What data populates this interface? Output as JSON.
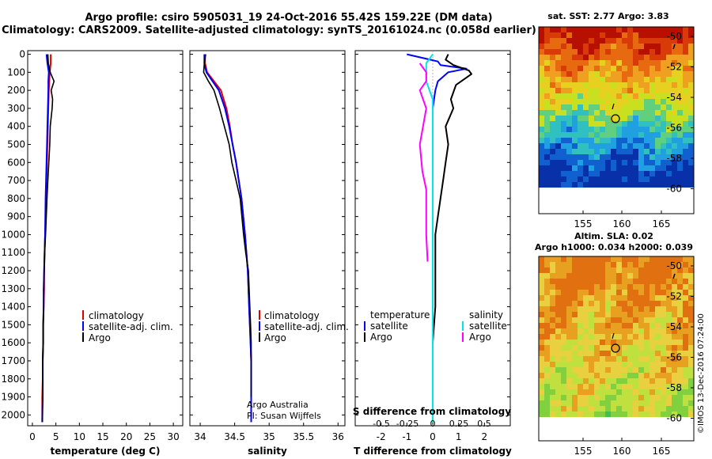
{
  "header": {
    "line1": "Argo profile: csiro 5905031_19 24-Oct-2016 55.42S 159.22E (DM data)",
    "line2": "Climatology: CARS2009. Satellite-adjusted climatology: synTS_20161024.nc (0.058d earlier)"
  },
  "colors": {
    "climatology": "#e00000",
    "satellite": "#0000ff",
    "argo": "#000000",
    "sal_satellite": "#00e5e5",
    "sal_argo": "#ff00ff"
  },
  "depth_ticks": [
    "0",
    "100",
    "200",
    "300",
    "400",
    "500",
    "600",
    "700",
    "800",
    "900",
    "1000",
    "1100",
    "1200",
    "1300",
    "1400",
    "1500",
    "1600",
    "1700",
    "1800",
    "1900",
    "2000"
  ],
  "panels": {
    "temperature": {
      "xlabel": "temperature (deg C)",
      "xticks": [
        "0",
        "5",
        "10",
        "15",
        "20",
        "25",
        "30"
      ],
      "legend": [
        "climatology",
        "satellite-adj. clim.",
        "Argo"
      ]
    },
    "salinity": {
      "xlabel": "salinity",
      "xticks": [
        "34",
        "34.5",
        "35",
        "35.5",
        "36"
      ],
      "legend": [
        "climatology",
        "satellite-adj. clim.",
        "Argo"
      ],
      "credit1": "Argo Australia",
      "credit2": "PI: Susan Wijffels"
    },
    "difference": {
      "xlabel": "T difference from climatology",
      "xticks": [
        "-2",
        "-1",
        "0",
        "1",
        "2"
      ],
      "s_label": "S difference from climatology",
      "s_ticks": [
        "-0.5",
        "-0.25",
        "0",
        "0.25",
        "0.5"
      ],
      "legend_t_title": "temperature",
      "legend_s_title": "salinity",
      "legend_t": [
        "satellite",
        "Argo"
      ],
      "legend_s": [
        "satellite",
        "Argo"
      ]
    }
  },
  "maps": {
    "sst": {
      "title": "sat. SST: 2.77 Argo: 3.83",
      "yticks": [
        "-50",
        "-52",
        "-54",
        "-56",
        "-58",
        "-60"
      ],
      "xticks": [
        "155",
        "160",
        "165"
      ]
    },
    "sla": {
      "title1": "Altim. SLA: 0.02",
      "title2": "Argo h1000: 0.034 h2000: 0.039",
      "yticks": [
        "-50",
        "-52",
        "-54",
        "-56",
        "-58",
        "-60"
      ],
      "xticks": [
        "155",
        "160",
        "165"
      ]
    },
    "float_position": {
      "lon": 159.22,
      "lat": -55.42
    }
  },
  "stamp": "©IMOS 13-Dec-2016 07:24:00",
  "chart_data": [
    {
      "type": "line",
      "title": "",
      "xlabel": "temperature (deg C)",
      "ylabel": "",
      "xlim": [
        -1,
        32
      ],
      "ylim": [
        2060,
        -20
      ],
      "series": [
        {
          "name": "climatology",
          "x": [
            3.9,
            3.9,
            3.7,
            3.6,
            3.5,
            3.4,
            3.3,
            3.2,
            3.1,
            3.0,
            2.9,
            2.7,
            2.6,
            2.5,
            2.5,
            2.4,
            2.3,
            2.3,
            2.2,
            2.2,
            2.1,
            2.1
          ],
          "y": [
            0,
            50,
            100,
            150,
            200,
            300,
            400,
            500,
            600,
            700,
            800,
            1000,
            1100,
            1200,
            1300,
            1400,
            1500,
            1600,
            1700,
            1800,
            1900,
            2040
          ]
        },
        {
          "name": "satellite-adj. clim.",
          "x": [
            3.0,
            3.2,
            3.5,
            3.4,
            3.4,
            3.3,
            3.2,
            3.1,
            3.0,
            2.9,
            2.8,
            2.7,
            2.6,
            2.5,
            2.4,
            2.4,
            2.3,
            2.3,
            2.2,
            2.2,
            2.2,
            2.1
          ],
          "y": [
            0,
            50,
            100,
            150,
            200,
            300,
            400,
            500,
            600,
            700,
            800,
            1000,
            1100,
            1200,
            1300,
            1400,
            1500,
            1600,
            1700,
            1800,
            1900,
            2040
          ]
        },
        {
          "name": "Argo",
          "x": [
            3.3,
            3.4,
            3.8,
            4.6,
            4.0,
            4.3,
            4.2,
            3.8,
            3.7,
            3.5,
            3.3,
            3.1,
            2.8,
            2.6,
            2.5,
            2.4,
            2.4,
            2.3,
            2.3,
            2.2,
            2.2,
            2.2,
            2.1
          ],
          "y": [
            0,
            50,
            100,
            150,
            200,
            250,
            300,
            400,
            500,
            600,
            700,
            800,
            1000,
            1100,
            1200,
            1300,
            1400,
            1500,
            1600,
            1700,
            1800,
            1900,
            2040
          ]
        }
      ]
    },
    {
      "type": "line",
      "title": "",
      "xlabel": "salinity",
      "ylabel": "",
      "xlim": [
        33.85,
        36.1
      ],
      "ylim": [
        2060,
        -20
      ],
      "series": [
        {
          "name": "climatology",
          "x": [
            34.07,
            34.07,
            34.1,
            34.2,
            34.3,
            34.38,
            34.43,
            34.47,
            34.52,
            34.56,
            34.6,
            34.65,
            34.69,
            34.71,
            34.72,
            34.73,
            34.74,
            34.74,
            34.74,
            34.74
          ],
          "y": [
            0,
            50,
            100,
            150,
            200,
            300,
            400,
            500,
            600,
            700,
            800,
            1000,
            1200,
            1400,
            1500,
            1600,
            1700,
            1800,
            1900,
            2040
          ]
        },
        {
          "name": "satellite-adj. clim.",
          "x": [
            34.06,
            34.06,
            34.09,
            34.18,
            34.27,
            34.36,
            34.42,
            34.47,
            34.52,
            34.56,
            34.6,
            34.65,
            34.69,
            34.71,
            34.72,
            34.73,
            34.74,
            34.74,
            34.74,
            34.74
          ],
          "y": [
            0,
            50,
            100,
            150,
            200,
            300,
            400,
            500,
            600,
            700,
            800,
            1000,
            1200,
            1400,
            1500,
            1600,
            1700,
            1800,
            1900,
            2040
          ]
        },
        {
          "name": "Argo",
          "x": [
            34.08,
            34.06,
            34.05,
            34.12,
            34.2,
            34.28,
            34.35,
            34.42,
            34.46,
            34.52,
            34.58,
            34.63,
            34.66,
            34.7,
            34.72,
            34.73,
            34.74,
            34.74,
            34.74,
            34.74
          ],
          "y": [
            0,
            50,
            100,
            150,
            200,
            300,
            400,
            500,
            600,
            700,
            800,
            1000,
            1100,
            1200,
            1400,
            1500,
            1600,
            1700,
            1800,
            1900
          ]
        }
      ]
    },
    {
      "type": "line",
      "title": "",
      "xlabel": "T difference from climatology",
      "x2label": "S difference from climatology",
      "ylabel": "",
      "xlim": [
        -3,
        3
      ],
      "ylim": [
        2060,
        -20
      ],
      "series": [
        {
          "name": "temperature satellite",
          "x": [
            -1.0,
            -0.4,
            -0.1,
            0.2,
            0.3,
            1.3,
            0.6,
            0.2,
            0.1,
            0.0,
            0.0,
            0.0,
            0.0,
            0.0,
            0.0,
            0.0,
            0.0,
            0.0,
            0.0,
            0.0,
            0.0
          ],
          "y": [
            0,
            20,
            30,
            40,
            60,
            80,
            100,
            150,
            200,
            300,
            400,
            500,
            700,
            900,
            1000,
            1200,
            1400,
            1600,
            1800,
            1900,
            2040
          ]
        },
        {
          "name": "temperature Argo",
          "x": [
            0.6,
            0.5,
            0.8,
            1.4,
            1.5,
            0.9,
            0.7,
            0.8,
            0.5,
            0.6,
            0.5,
            0.4,
            0.3,
            0.2,
            0.1,
            0.1,
            0.1,
            0.0,
            0.0,
            0.0,
            0.0
          ],
          "y": [
            0,
            30,
            60,
            90,
            110,
            170,
            250,
            300,
            400,
            500,
            600,
            700,
            800,
            900,
            1000,
            1200,
            1400,
            1600,
            1800,
            1900,
            2040
          ]
        },
        {
          "name": "salinity satellite",
          "x": [
            0.0,
            -0.05,
            -0.05,
            0.0,
            0.0,
            0.0,
            0.0,
            0.0,
            0.0,
            0.0,
            0.0,
            0.0,
            0.0,
            0.0,
            0.0
          ],
          "y": [
            0,
            50,
            150,
            250,
            400,
            600,
            800,
            1000,
            1200,
            1400,
            1600,
            1700,
            1800,
            1900,
            2040
          ]
        },
        {
          "name": "salinity Argo",
          "x": [
            -0.1,
            -0.05,
            -0.05,
            -0.1,
            -0.05,
            -0.1,
            -0.08,
            -0.05,
            -0.05,
            -0.05,
            -0.04
          ],
          "y": [
            50,
            100,
            150,
            200,
            300,
            500,
            650,
            750,
            800,
            1000,
            1150
          ]
        }
      ]
    }
  ]
}
